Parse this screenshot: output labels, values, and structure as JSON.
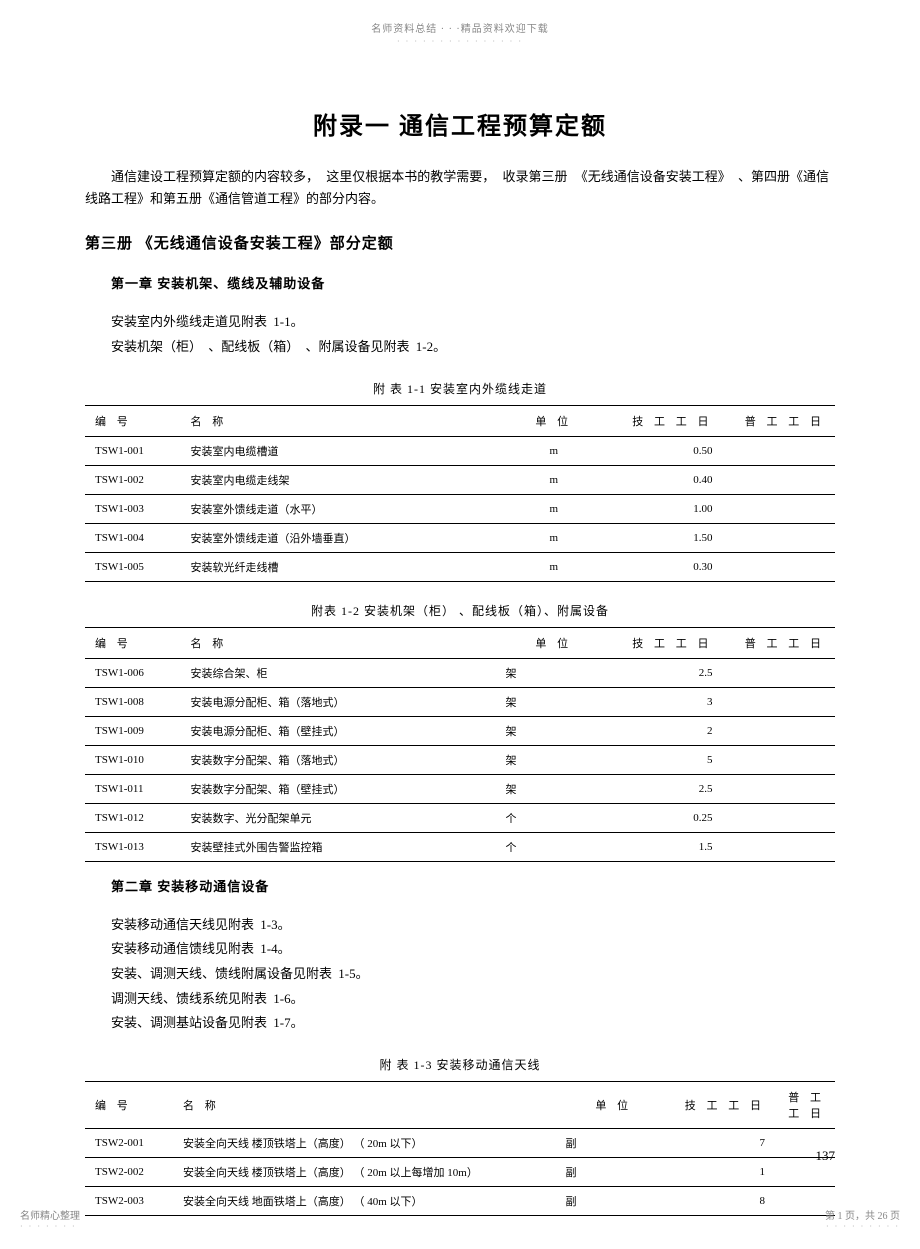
{
  "header": {
    "banner": "名师资料总结 · · ·精品资料欢迎下载",
    "dots": "· · · · · · · · · · · · · · ·"
  },
  "title": "附录一    通信工程预算定额",
  "intro": "通信建设工程预算定额的内容较多，    这里仅根据本书的教学需要，    收录第三册 《无线通信设备安装工程》  、第四册《通信线路工程》和第五册《通信管道工程》的部分内容。",
  "section3_title": "第三册    《无线通信设备安装工程》部分定额",
  "chapter1": {
    "title": "第一章    安装机架、缆线及辅助设备",
    "line1": "安装室内外缆线走道见附表    1-1。",
    "line2": "安装机架（柜） 、配线板（箱） 、附属设备见附表   1-2。"
  },
  "table1": {
    "caption": "附 表  1-1    安装室内外缆线走道",
    "headers": {
      "id": "编    号",
      "name": "名    称",
      "unit": "单    位",
      "tech": "技 工 工 日",
      "pu": "普 工 工 日"
    },
    "rows": [
      {
        "id": "TSW1-001",
        "name": "安装室内电缆槽道",
        "unit": "m",
        "tech": "0.50",
        "pu": ""
      },
      {
        "id": "TSW1-002",
        "name": "安装室内电缆走线架",
        "unit": "m",
        "tech": "0.40",
        "pu": ""
      },
      {
        "id": "TSW1-003",
        "name": "安装室外馈线走道（水平）",
        "unit": "m",
        "tech": "1.00",
        "pu": ""
      },
      {
        "id": "TSW1-004",
        "name": "安装室外馈线走道（沿外墙垂直）",
        "unit": "m",
        "tech": "1.50",
        "pu": ""
      },
      {
        "id": "TSW1-005",
        "name": "安装软光纤走线槽",
        "unit": "m",
        "tech": "0.30",
        "pu": ""
      }
    ]
  },
  "table2": {
    "caption": "附表  1-2    安装机架（柜） 、配线板（箱）、附属设备",
    "headers": {
      "id": "编    号",
      "name": "名    称",
      "unit": "单    位",
      "tech": "技 工 工 日",
      "pu": "普 工 工 日"
    },
    "rows": [
      {
        "id": "TSW1-006",
        "name": "安装综合架、柜",
        "unit": "架",
        "tech": "2.5",
        "pu": ""
      },
      {
        "id": "TSW1-008",
        "name": "安装电源分配柜、箱（落地式）",
        "unit": "架",
        "tech": "3",
        "pu": ""
      },
      {
        "id": "TSW1-009",
        "name": "安装电源分配柜、箱（壁挂式）",
        "unit": "架",
        "tech": "2",
        "pu": ""
      },
      {
        "id": "TSW1-010",
        "name": "安装数字分配架、箱（落地式）",
        "unit": "架",
        "tech": "5",
        "pu": ""
      },
      {
        "id": "TSW1-011",
        "name": "安装数字分配架、箱（壁挂式）",
        "unit": "架",
        "tech": "2.5",
        "pu": ""
      },
      {
        "id": "TSW1-012",
        "name": "安装数字、光分配架单元",
        "unit": "个",
        "tech": "0.25",
        "pu": ""
      },
      {
        "id": "TSW1-013",
        "name": "安装壁挂式外围告警监控箱",
        "unit": "个",
        "tech": "1.5",
        "pu": ""
      }
    ]
  },
  "chapter2": {
    "title": "第二章    安装移动通信设备",
    "line1": "安装移动通信天线见附表    1-3。",
    "line2": "安装移动通信馈线见附表    1-4。",
    "line3": "安装、调测天线、馈线附属设备见附表      1-5。",
    "line4": "调测天线、馈线系统见附表    1-6。",
    "line5": "安装、调测基站设备见附表    1-7。"
  },
  "table3": {
    "caption": "附 表  1-3    安装移动通信天线",
    "headers": {
      "id": "编    号",
      "name": "名    称",
      "unit": "单    位",
      "tech": "技 工 工 日",
      "pu": "普 工 工 日"
    },
    "rows": [
      {
        "id": "TSW2-001",
        "name": "安装全向天线   楼顶铁塔上（高度） （ 20m 以下）",
        "unit": "副",
        "tech": "7",
        "pu": ""
      },
      {
        "id": "TSW2-002",
        "name": "安装全向天线   楼顶铁塔上（高度） （ 20m 以上每增加  10m）",
        "unit": "副",
        "tech": "1",
        "pu": ""
      },
      {
        "id": "TSW2-003",
        "name": "安装全向天线   地面铁塔上（高度） （ 40m 以下）",
        "unit": "副",
        "tech": "8",
        "pu": ""
      }
    ]
  },
  "page_number": "137",
  "footer": {
    "left": "名师精心整理",
    "left_dots": "· · · · · · ·",
    "right": "第 1 页，共 26 页",
    "right_dots": "· · · · · · · · ·"
  }
}
